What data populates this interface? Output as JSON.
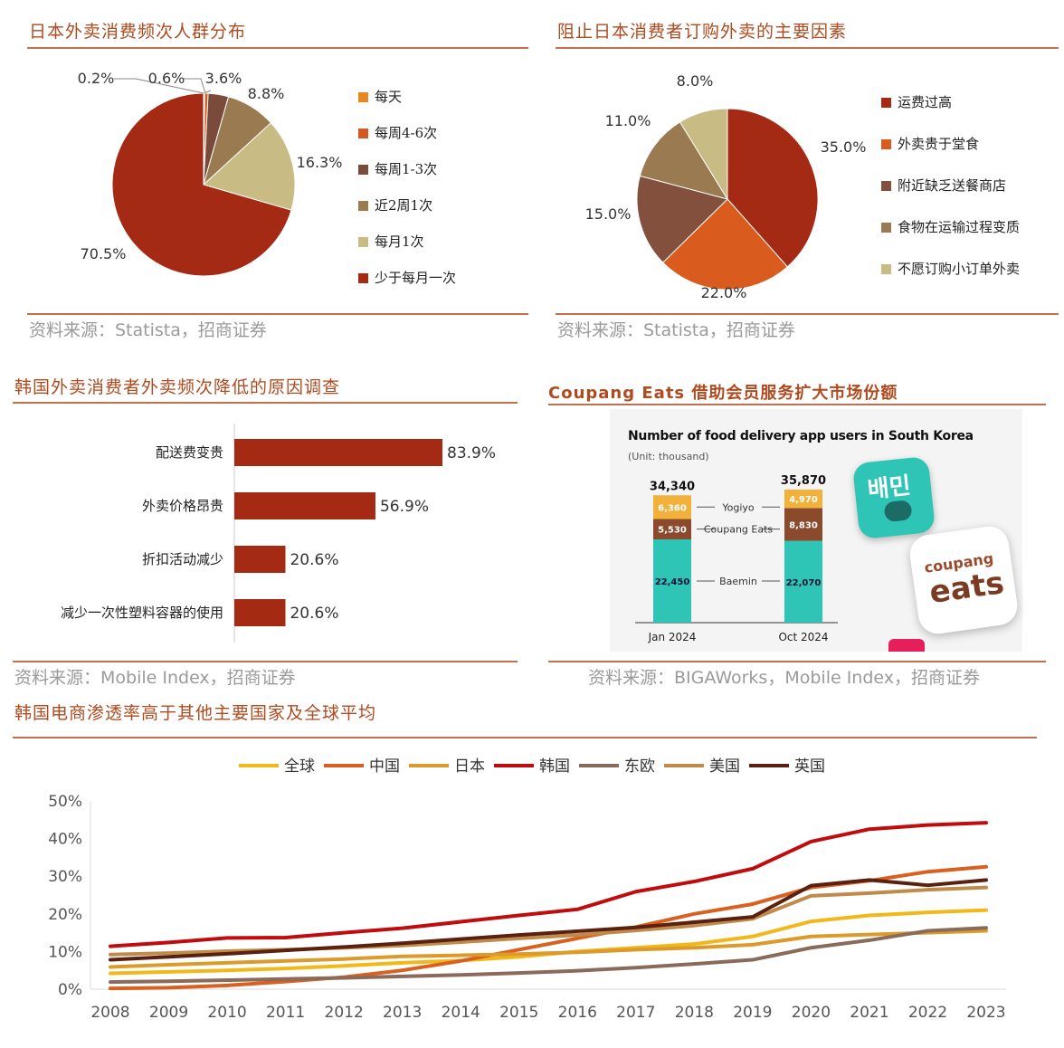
{
  "panels": {
    "jp_freq": {
      "title": "日本外卖消费频次人群分布",
      "source": "资料来源：Statista，招商证券"
    },
    "jp_barrier": {
      "title": "阻止日本消费者订购外卖的主要因素",
      "source": "资料来源：Statista，招商证券"
    },
    "kr_reason": {
      "title": "韩国外卖消费者外卖频次降低的原因调查",
      "source": "资料来源：Mobile Index，招商证券"
    },
    "coupang": {
      "title": "Coupang Eats 借助会员服务扩大市场份额",
      "source": "资料来源：BIGAWorks，Mobile Index，招商证券"
    },
    "ecom": {
      "title": "韩国电商渗透率高于其他主要国家及全球平均"
    }
  },
  "coupang_image": {
    "heading": "Number of food delivery app users in South Korea",
    "unit": "(Unit: thousand)",
    "bars": [
      {
        "x_label": "Jan 2024",
        "total": "34,340",
        "baemin": "22,450",
        "coupang": "5,530",
        "yogiyo": "6,360"
      },
      {
        "x_label": "Oct 2024",
        "total": "35,870",
        "baemin": "22,070",
        "coupang": "8,830",
        "yogiyo": "4,970"
      }
    ],
    "labels": {
      "yogiyo": "Yogiyo",
      "coupang": "Coupang Eats",
      "baemin": "Baemin"
    },
    "logo_baemin": "배민",
    "logo_coupang_small": "coupang",
    "logo_coupang_big": "eats",
    "colors": {
      "baemin": "#2ec4b6",
      "coupang": "#8b4a2b",
      "yogiyo": "#f2b13a"
    }
  },
  "chart_data": [
    {
      "type": "pie",
      "categories": [
        "每天",
        "每周4-6次",
        "每周1-3次",
        "近2周1次",
        "每月1次",
        "少于每月一次"
      ],
      "values": [
        0.2,
        0.6,
        3.6,
        8.8,
        16.3,
        70.5
      ],
      "labels": [
        "0.2%",
        "0.6%",
        "3.6%",
        "8.8%",
        "16.3%",
        "70.5%"
      ],
      "colors": [
        "#e8871e",
        "#d25a22",
        "#7a4a3a",
        "#9a7a50",
        "#c9bb84",
        "#a52a14"
      ],
      "legend": "right"
    },
    {
      "type": "pie",
      "categories": [
        "运费过高",
        "外卖贵于堂食",
        "附近缺乏送餐商店",
        "食物在运输过程变质",
        "不愿订购小订单外卖"
      ],
      "values": [
        35.0,
        22.0,
        15.0,
        11.0,
        8.0
      ],
      "labels": [
        "35.0%",
        "22.0%",
        "15.0%",
        "11.0%",
        "8.0%"
      ],
      "colors": [
        "#a52a14",
        "#d95b1d",
        "#82503c",
        "#9a7a50",
        "#c9bb84"
      ],
      "legend": "right"
    },
    {
      "type": "bar",
      "orientation": "horizontal",
      "categories": [
        "配送费变贵",
        "外卖价格昂贵",
        "折扣活动减少",
        "减少一次性塑料容器的使用"
      ],
      "values": [
        83.9,
        56.9,
        20.6,
        20.6
      ],
      "labels": [
        "83.9%",
        "56.9%",
        "20.6%",
        "20.6%"
      ],
      "color": "#a52a14"
    },
    {
      "type": "line",
      "x": [
        "2008",
        "2009",
        "2010",
        "2011",
        "2012",
        "2013",
        "2014",
        "2015",
        "2016",
        "2017",
        "2018",
        "2019",
        "2020",
        "2021",
        "2022",
        "2023"
      ],
      "yticks": [
        "0%",
        "10%",
        "20%",
        "30%",
        "40%",
        "50%"
      ],
      "ylim": [
        0,
        50
      ],
      "legend": "top",
      "series": [
        {
          "name": "全球",
          "color": "#f2b81a",
          "values": [
            4.2,
            4.6,
            5.0,
            5.5,
            6.2,
            7.0,
            7.6,
            8.6,
            10.0,
            11.0,
            12.0,
            14.0,
            18.0,
            19.6,
            20.4,
            21.0
          ]
        },
        {
          "name": "中国",
          "color": "#d9601e",
          "values": [
            0.2,
            0.4,
            1.0,
            2.0,
            3.2,
            5.0,
            7.5,
            10.5,
            13.5,
            16.5,
            20.0,
            22.6,
            27.0,
            28.8,
            31.2,
            32.5
          ]
        },
        {
          "name": "日本",
          "color": "#dc9a2a",
          "values": [
            5.9,
            6.5,
            7.0,
            7.5,
            8.0,
            8.7,
            9.0,
            9.3,
            9.8,
            10.5,
            11.0,
            11.8,
            14.0,
            14.5,
            15.0,
            15.5
          ]
        },
        {
          "name": "韩国",
          "color": "#c00c0c",
          "values": [
            11.4,
            12.4,
            13.6,
            13.7,
            15.0,
            16.2,
            17.9,
            19.6,
            21.2,
            25.9,
            28.6,
            32.0,
            39.2,
            42.5,
            43.6,
            44.2
          ]
        },
        {
          "name": "东欧",
          "color": "#8a6a5a",
          "values": [
            1.9,
            2.1,
            2.4,
            2.7,
            3.0,
            3.4,
            3.8,
            4.3,
            4.9,
            5.7,
            6.7,
            7.8,
            11.0,
            13.0,
            15.5,
            16.3
          ]
        },
        {
          "name": "美国",
          "color": "#c08a4a",
          "values": [
            9.2,
            9.6,
            10.1,
            10.5,
            11.0,
            11.6,
            12.5,
            13.5,
            14.4,
            15.6,
            16.9,
            18.7,
            24.8,
            25.5,
            26.4,
            27.0
          ]
        },
        {
          "name": "英国",
          "color": "#5a2010",
          "values": [
            7.8,
            8.6,
            9.4,
            10.3,
            11.2,
            12.2,
            13.3,
            14.4,
            15.4,
            16.4,
            17.8,
            19.2,
            27.5,
            29.0,
            27.6,
            29.0
          ]
        }
      ]
    }
  ]
}
